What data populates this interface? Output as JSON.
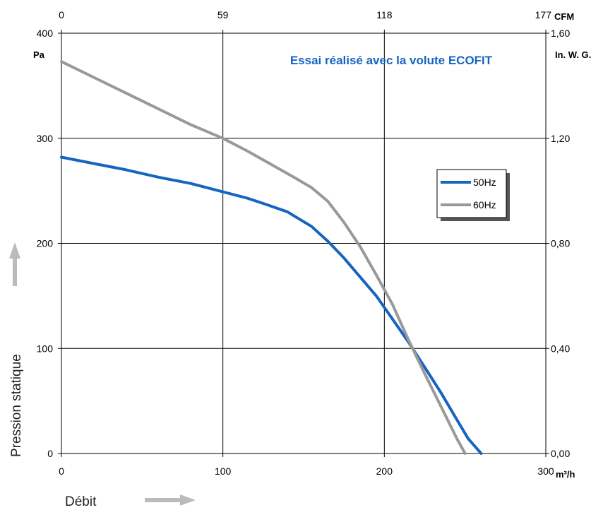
{
  "chart_data": {
    "type": "line",
    "annotation": "Essai réalisé avec la volute ECOFIT",
    "x_bottom": {
      "unit": "m³/h",
      "ticks": [
        "0",
        "100",
        "200",
        "300"
      ],
      "range": [
        0,
        300
      ]
    },
    "x_top": {
      "unit": "CFM",
      "ticks": [
        "0",
        "59",
        "118",
        "177"
      ]
    },
    "y_left": {
      "unit": "Pa",
      "ticks": [
        "0",
        "100",
        "200",
        "300",
        "400"
      ],
      "range": [
        0,
        400
      ]
    },
    "y_right": {
      "unit": "In. W. G.",
      "ticks": [
        "0,00",
        "0,40",
        "0,80",
        "1,20",
        "1,60"
      ]
    },
    "xlabel": "Débit",
    "ylabel": "Pression statique",
    "grid": true,
    "legend_position": "right",
    "series": [
      {
        "name": "50Hz",
        "color": "#1565c0",
        "points": [
          [
            0,
            282
          ],
          [
            20,
            276
          ],
          [
            40,
            270
          ],
          [
            60,
            263
          ],
          [
            80,
            257
          ],
          [
            100,
            249
          ],
          [
            115,
            243
          ],
          [
            125,
            238
          ],
          [
            140,
            230
          ],
          [
            155,
            216
          ],
          [
            165,
            202
          ],
          [
            175,
            186
          ],
          [
            185,
            168
          ],
          [
            195,
            150
          ],
          [
            205,
            128
          ],
          [
            215,
            106
          ],
          [
            225,
            82
          ],
          [
            235,
            58
          ],
          [
            245,
            32
          ],
          [
            252,
            14
          ],
          [
            260,
            0
          ]
        ]
      },
      {
        "name": "60Hz",
        "color": "#999999",
        "points": [
          [
            0,
            373
          ],
          [
            20,
            358
          ],
          [
            40,
            343
          ],
          [
            60,
            328
          ],
          [
            80,
            313
          ],
          [
            100,
            300
          ],
          [
            115,
            288
          ],
          [
            130,
            275
          ],
          [
            145,
            262
          ],
          [
            155,
            253
          ],
          [
            165,
            240
          ],
          [
            175,
            220
          ],
          [
            185,
            197
          ],
          [
            195,
            170
          ],
          [
            205,
            142
          ],
          [
            215,
            108
          ],
          [
            225,
            76
          ],
          [
            235,
            45
          ],
          [
            245,
            14
          ],
          [
            250,
            0
          ]
        ]
      }
    ]
  }
}
